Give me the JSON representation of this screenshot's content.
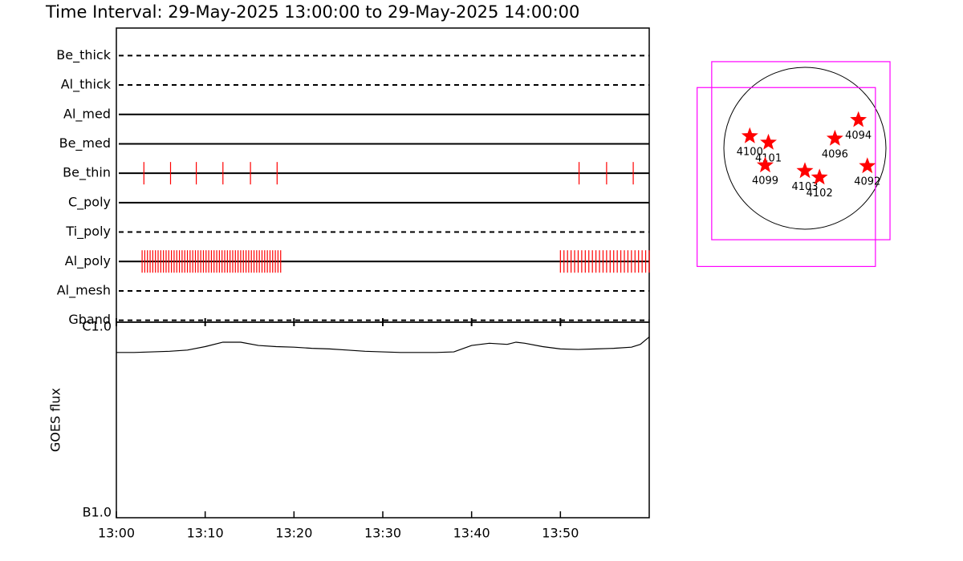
{
  "chart_data": [
    {
      "type": "timeline",
      "title": "Time Interval: 29-May-2025 13:00:00 to 29-May-2025 14:00:00",
      "color": "#ff0000",
      "xlim": [
        0,
        60
      ],
      "rows": [
        {
          "name": "Be_thick",
          "line_style": "dashed",
          "events": []
        },
        {
          "name": "Al_thick",
          "line_style": "dashed",
          "events": []
        },
        {
          "name": "Al_med",
          "line_style": "solid",
          "events": []
        },
        {
          "name": "Be_med",
          "line_style": "solid",
          "events": []
        },
        {
          "name": "Be_thin",
          "line_style": "solid",
          "events": [
            3.1,
            6.1,
            9.0,
            12.0,
            15.1,
            18.1,
            52.1,
            55.2,
            58.2
          ]
        },
        {
          "name": "C_poly",
          "line_style": "solid",
          "events": []
        },
        {
          "name": "Ti_poly",
          "line_style": "dashed",
          "events": []
        },
        {
          "name": "Al_poly",
          "line_style": "solid",
          "events": [
            2.9,
            3.2,
            3.5,
            3.8,
            4.1,
            4.4,
            4.7,
            5.0,
            5.3,
            5.6,
            5.9,
            6.2,
            6.5,
            6.8,
            7.1,
            7.4,
            7.7,
            8.0,
            8.3,
            8.6,
            8.9,
            9.2,
            9.5,
            9.8,
            10.1,
            10.4,
            10.7,
            11.0,
            11.3,
            11.6,
            11.9,
            12.2,
            12.5,
            12.8,
            13.1,
            13.4,
            13.7,
            14.0,
            14.3,
            14.6,
            14.9,
            15.2,
            15.5,
            15.8,
            16.1,
            16.4,
            16.7,
            17.0,
            17.3,
            17.6,
            17.9,
            18.2,
            18.5,
            50.0,
            50.4,
            50.8,
            51.2,
            51.6,
            52.0,
            52.4,
            52.8,
            53.2,
            53.6,
            54.0,
            54.4,
            54.8,
            55.2,
            55.6,
            56.0,
            56.4,
            56.8,
            57.2,
            57.6,
            58.0,
            58.4,
            58.8,
            59.2,
            59.6,
            60.0
          ]
        },
        {
          "name": "Al_mesh",
          "line_style": "dashed",
          "events": []
        },
        {
          "name": "Gband",
          "line_style": "dashed",
          "events": []
        }
      ]
    },
    {
      "type": "line",
      "ylabel": "GOES flux",
      "color": "#000000",
      "log_scale": true,
      "xlim": [
        0,
        60
      ],
      "xticks": [
        {
          "value": 0,
          "label": "13:00"
        },
        {
          "value": 10,
          "label": "13:10"
        },
        {
          "value": 20,
          "label": "13:20"
        },
        {
          "value": 30,
          "label": "13:30"
        },
        {
          "value": 40,
          "label": "13:40"
        },
        {
          "value": 50,
          "label": "13:50"
        }
      ],
      "ylim": [
        1e-07,
        1e-06
      ],
      "yticks": [
        {
          "value": 1e-06,
          "label": "C1.0"
        },
        {
          "value": 1e-07,
          "label": "B1.0"
        }
      ],
      "x": [
        0,
        2,
        4,
        6,
        8,
        10,
        12,
        14,
        16,
        18,
        20,
        22,
        24,
        26,
        28,
        30,
        32,
        34,
        36,
        38,
        40,
        42,
        44,
        45,
        46,
        48,
        50,
        52,
        54,
        56,
        58,
        59,
        60
      ],
      "values": [
        7e-07,
        7e-07,
        7.05e-07,
        7.1e-07,
        7.2e-07,
        7.5e-07,
        7.9e-07,
        7.9e-07,
        7.6e-07,
        7.5e-07,
        7.45e-07,
        7.35e-07,
        7.3e-07,
        7.2e-07,
        7.1e-07,
        7.05e-07,
        7e-07,
        7e-07,
        7e-07,
        7.05e-07,
        7.6e-07,
        7.8e-07,
        7.7e-07,
        7.9e-07,
        7.8e-07,
        7.5e-07,
        7.3e-07,
        7.25e-07,
        7.3e-07,
        7.35e-07,
        7.45e-07,
        7.7e-07,
        8.4e-07
      ]
    },
    {
      "type": "map",
      "color": "#ff0000",
      "box_color": "#ff00ff",
      "points": [
        {
          "label": "4100",
          "x": -0.68,
          "y": 0.15
        },
        {
          "label": "4101",
          "x": -0.45,
          "y": 0.07
        },
        {
          "label": "4099",
          "x": -0.49,
          "y": -0.21
        },
        {
          "label": "4103",
          "x": 0.0,
          "y": -0.28
        },
        {
          "label": "4102",
          "x": 0.18,
          "y": -0.36
        },
        {
          "label": "4096",
          "x": 0.37,
          "y": 0.12
        },
        {
          "label": "4094",
          "x": 0.66,
          "y": 0.35
        },
        {
          "label": "4092",
          "x": 0.77,
          "y": -0.22
        }
      ],
      "fov_boxes": [
        {
          "x": [
            -1.15,
            1.05
          ],
          "y": [
            -1.13,
            1.07
          ]
        },
        {
          "x": [
            -1.33,
            0.87
          ],
          "y": [
            -1.46,
            0.75
          ]
        }
      ]
    }
  ]
}
